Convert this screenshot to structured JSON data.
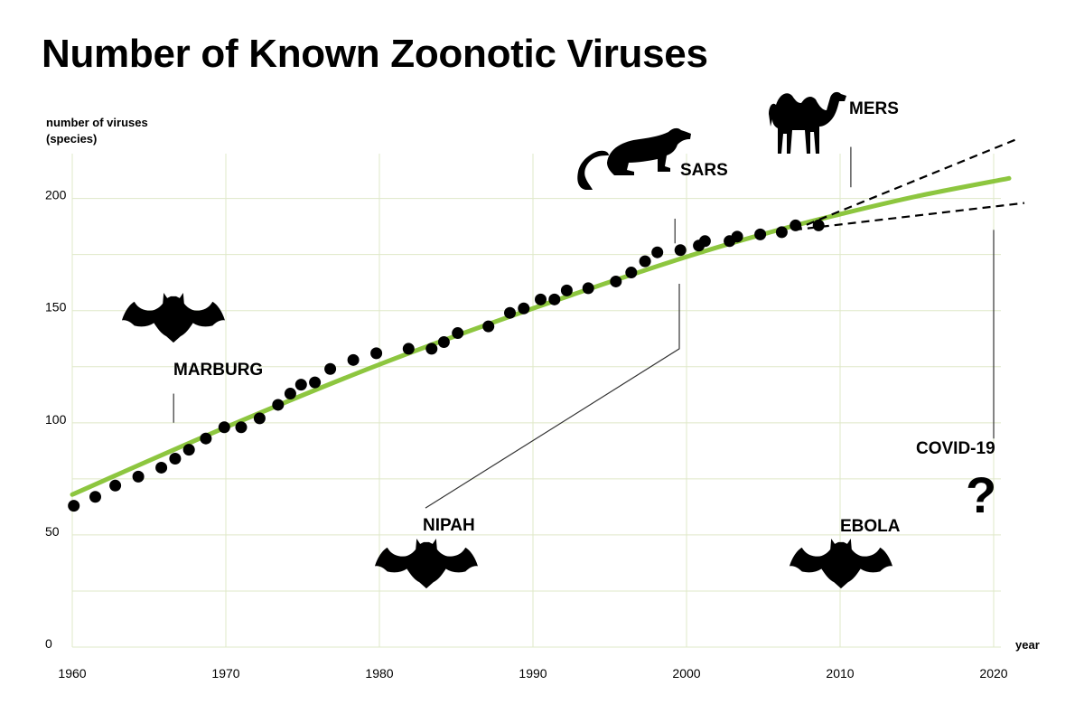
{
  "title": "Number of Known Zoonotic Viruses",
  "chart_data": {
    "type": "scatter",
    "title": "Number of Known Zoonotic Viruses",
    "ylabel_lines": [
      "number of viruses",
      "(species)"
    ],
    "xlabel": "year",
    "xlim": [
      1960,
      2020
    ],
    "ylim": [
      0,
      220
    ],
    "x_ticks": [
      1960,
      1970,
      1980,
      1990,
      2000,
      2010,
      2020
    ],
    "y_ticks": [
      0,
      50,
      100,
      150,
      200
    ],
    "grid": true,
    "colors": {
      "trend": "#8dc63f",
      "points": "#000000",
      "grid": "#dfe8c8"
    },
    "series": [
      {
        "kind": "points",
        "x": [
          1960.1,
          1961.5,
          1962.8,
          1964.3,
          1965.8,
          1966.7,
          1967.6,
          1968.7,
          1969.9,
          1971,
          1972.2,
          1973.4,
          1974.2,
          1974.9,
          1975.8,
          1976.8,
          1978.3,
          1979.8,
          1981.9,
          1983.4,
          1984.2,
          1985.1,
          1987.1,
          1988.5,
          1989.4,
          1990.5,
          1991.4,
          1992.2,
          1993.6,
          1995.4,
          1996.4,
          1997.3,
          1998.1,
          1999.6,
          2000.8,
          2001.2,
          2002.8,
          2003.3,
          2004.8,
          2006.2,
          2007.1,
          2008.6
        ],
        "y": [
          63,
          67,
          72,
          76,
          80,
          84,
          88,
          93,
          98,
          98,
          102,
          108,
          113,
          117,
          118,
          124,
          128,
          131,
          133,
          133,
          136,
          140,
          143,
          149,
          151,
          155,
          155,
          159,
          160,
          163,
          167,
          172,
          176,
          177,
          179,
          181,
          181,
          183,
          184,
          185,
          188,
          188
        ]
      },
      {
        "kind": "trend",
        "x": [
          1960,
          1970,
          1980,
          1990,
          2000,
          2006,
          2010,
          2015,
          2021
        ],
        "y": [
          68,
          98,
          126,
          151,
          174,
          186,
          193,
          201,
          209
        ]
      },
      {
        "kind": "projection-upper",
        "x": [
          2007,
          2021.7
        ],
        "y": [
          186,
          227
        ]
      },
      {
        "kind": "projection-lower",
        "x": [
          2007,
          2022
        ],
        "y": [
          186,
          198
        ]
      }
    ],
    "annotations": [
      {
        "id": "marburg",
        "text": "MARBURG",
        "x": 1966.6,
        "y": 96,
        "label_y": 118,
        "icon": "bat"
      },
      {
        "id": "nipah",
        "text": "NIPAH",
        "x": 2000,
        "y": 162,
        "label_y": 52,
        "icon": "bat"
      },
      {
        "id": "sars",
        "text": "SARS",
        "x": 1999.6,
        "y": 182,
        "label_y": 203,
        "icon": "civet"
      },
      {
        "id": "mers",
        "text": "MERS",
        "x": 2010.7,
        "y": 205,
        "label_y": 230,
        "icon": "camel"
      },
      {
        "id": "ebola",
        "text": "EBOLA",
        "x": 2010,
        "y": 52,
        "label_y": 52,
        "icon": "bat"
      },
      {
        "id": "covid",
        "text": "COVID-19",
        "x": 2020,
        "y": 93,
        "label_y": 85,
        "icon": "question-mark",
        "symbol": "?"
      }
    ]
  }
}
